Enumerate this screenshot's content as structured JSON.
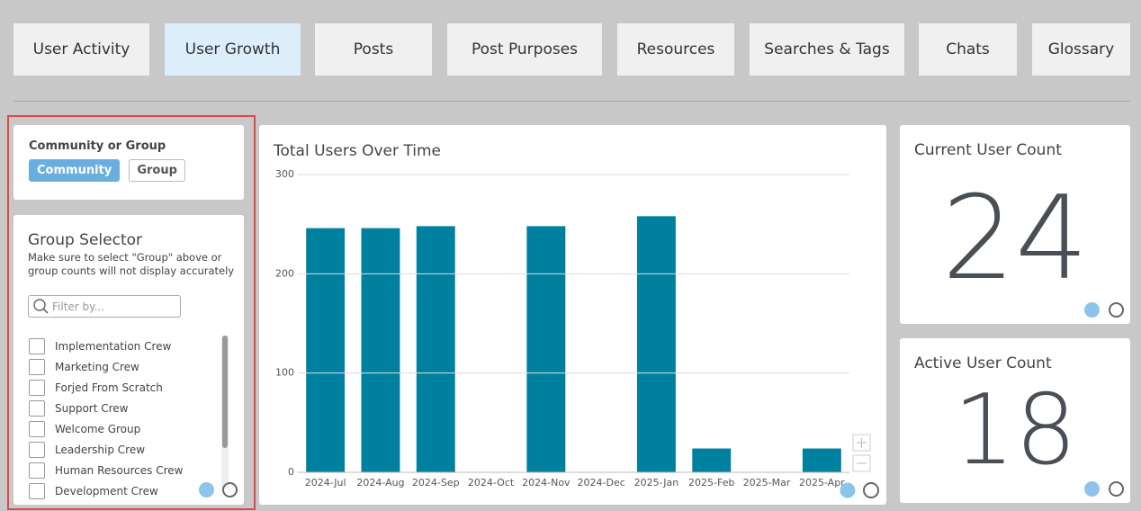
{
  "tabs": [
    "User Activity",
    "User Growth",
    "Posts",
    "Post Purposes",
    "Resources",
    "Searches & Tags",
    "Chats",
    "Glossary"
  ],
  "active_tab": 1,
  "community_filter": {
    "label": "Community or Group",
    "options": [
      "Community",
      "Group"
    ],
    "selected": 0
  },
  "group_selector": {
    "title": "Group Selector",
    "note": "Make sure to select \"Group\" above or group counts will not display accurately",
    "placeholder": "Filter by...",
    "groups": [
      "Implementation Crew",
      "Marketing Crew",
      "Forjed From Scratch",
      "Support Crew",
      "Welcome Group",
      "Leadership Crew",
      "Human Resources Crew",
      "Development Crew"
    ]
  },
  "chart_data": {
    "type": "bar",
    "title": "Total Users Over Time",
    "categories": [
      "2024-Jul",
      "2024-Aug",
      "2024-Sep",
      "2024-Oct",
      "2024-Nov",
      "2024-Dec",
      "2025-Jan",
      "2025-Feb",
      "2025-Mar",
      "2025-Apr"
    ],
    "values": [
      246,
      246,
      248,
      null,
      248,
      null,
      258,
      24,
      null,
      24
    ],
    "color": "#00809f",
    "ylim": [
      0,
      300
    ],
    "yticks": [
      0,
      100,
      200,
      300
    ],
    "grid": true
  },
  "kpis": [
    {
      "title": "Current User Count",
      "value": 24
    },
    {
      "title": "Active User Count",
      "value": 18
    }
  ]
}
